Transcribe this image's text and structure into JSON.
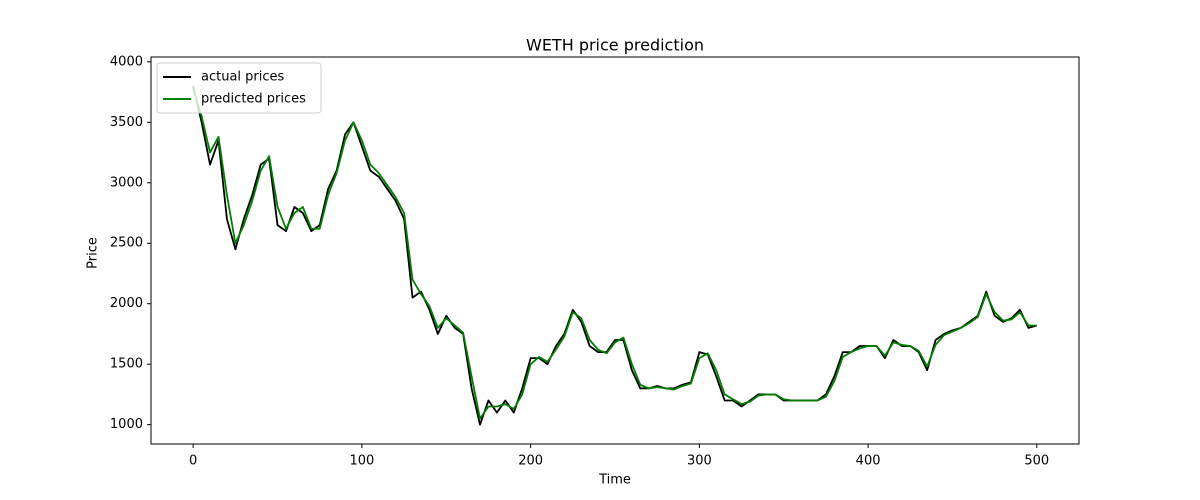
{
  "chart_data": {
    "type": "line",
    "title": "WETH price prediction",
    "x_label": "Time",
    "y_label": "Price",
    "x": [
      0,
      5,
      10,
      15,
      20,
      25,
      30,
      35,
      40,
      45,
      50,
      55,
      60,
      65,
      70,
      75,
      80,
      85,
      90,
      95,
      100,
      105,
      110,
      115,
      120,
      125,
      130,
      135,
      140,
      145,
      150,
      155,
      160,
      165,
      170,
      175,
      180,
      185,
      190,
      195,
      200,
      205,
      210,
      215,
      220,
      225,
      230,
      235,
      240,
      245,
      250,
      255,
      260,
      265,
      270,
      275,
      280,
      285,
      290,
      295,
      300,
      305,
      310,
      315,
      320,
      325,
      330,
      335,
      340,
      345,
      350,
      355,
      360,
      365,
      370,
      375,
      380,
      385,
      390,
      395,
      400,
      405,
      410,
      415,
      420,
      425,
      430,
      435,
      440,
      445,
      450,
      455,
      460,
      465,
      470,
      475,
      480,
      485,
      490,
      495,
      500
    ],
    "series": [
      {
        "name": "actual prices",
        "color": "#000000",
        "values": [
          3800,
          3500,
          3150,
          3350,
          2700,
          2450,
          2700,
          2900,
          3150,
          3200,
          2650,
          2600,
          2800,
          2750,
          2600,
          2650,
          2950,
          3100,
          3400,
          3500,
          3300,
          3100,
          3050,
          2950,
          2850,
          2700,
          2050,
          2100,
          1950,
          1750,
          1900,
          1800,
          1750,
          1300,
          1000,
          1200,
          1100,
          1200,
          1100,
          1300,
          1550,
          1550,
          1500,
          1650,
          1750,
          1950,
          1850,
          1650,
          1600,
          1600,
          1700,
          1700,
          1450,
          1300,
          1300,
          1320,
          1300,
          1300,
          1330,
          1350,
          1600,
          1580,
          1400,
          1200,
          1200,
          1150,
          1200,
          1250,
          1250,
          1250,
          1200,
          1200,
          1200,
          1200,
          1200,
          1250,
          1400,
          1600,
          1600,
          1650,
          1650,
          1650,
          1550,
          1700,
          1650,
          1650,
          1600,
          1450,
          1700,
          1750,
          1780,
          1800,
          1850,
          1900,
          2100,
          1900,
          1850,
          1880,
          1950,
          1800,
          1820
        ]
      },
      {
        "name": "predicted prices",
        "color": "#008000",
        "values": [
          3780,
          3550,
          3250,
          3380,
          2900,
          2500,
          2650,
          2850,
          3100,
          3220,
          2800,
          2620,
          2750,
          2800,
          2620,
          2620,
          2900,
          3080,
          3350,
          3500,
          3350,
          3150,
          3080,
          2980,
          2880,
          2750,
          2200,
          2080,
          1980,
          1800,
          1880,
          1820,
          1760,
          1400,
          1050,
          1150,
          1150,
          1170,
          1130,
          1250,
          1500,
          1560,
          1520,
          1620,
          1730,
          1930,
          1880,
          1700,
          1620,
          1590,
          1680,
          1720,
          1500,
          1330,
          1300,
          1310,
          1300,
          1290,
          1320,
          1340,
          1550,
          1590,
          1450,
          1250,
          1210,
          1170,
          1190,
          1240,
          1250,
          1250,
          1210,
          1200,
          1200,
          1200,
          1200,
          1230,
          1360,
          1560,
          1600,
          1630,
          1650,
          1650,
          1570,
          1680,
          1660,
          1650,
          1610,
          1480,
          1660,
          1740,
          1770,
          1800,
          1840,
          1890,
          2080,
          1930,
          1860,
          1870,
          1930,
          1820,
          1820
        ]
      }
    ],
    "xlim": [
      -25,
      525
    ],
    "ylim": [
      840,
      4040
    ],
    "xticks": [
      0,
      100,
      200,
      300,
      400,
      500
    ],
    "yticks": [
      1000,
      1500,
      2000,
      2500,
      3000,
      3500,
      4000
    ],
    "legend": "upper left"
  }
}
